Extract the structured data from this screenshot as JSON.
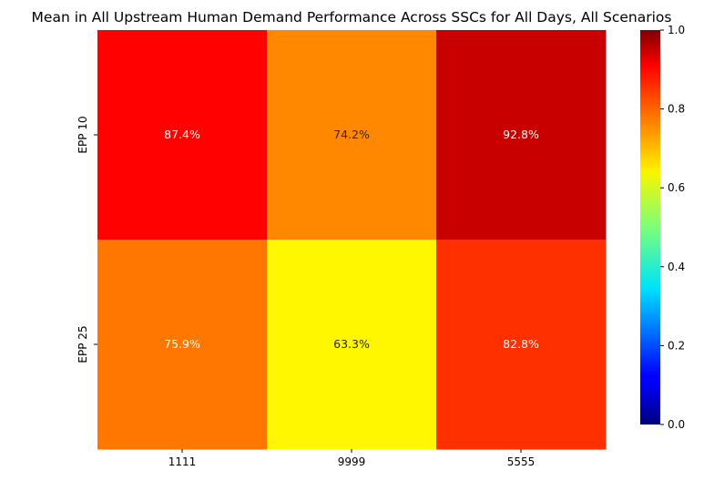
{
  "chart_data": {
    "type": "heatmap",
    "title": "Mean in All Upstream Human Demand Performance Across SSCs for All Days, All Scenarios",
    "x_categories": [
      "1111",
      "9999",
      "5555"
    ],
    "y_categories": [
      "EPP 10",
      "EPP 25"
    ],
    "values": [
      [
        0.874,
        0.742,
        0.928
      ],
      [
        0.759,
        0.633,
        0.828
      ]
    ],
    "cell_labels": [
      [
        "87.4%",
        "74.2%",
        "92.8%"
      ],
      [
        "75.9%",
        "63.3%",
        "82.8%"
      ]
    ],
    "colormap": "jet",
    "color_range": [
      0.0,
      1.0
    ],
    "colorbar_ticks": [
      "0.0",
      "0.2",
      "0.4",
      "0.6",
      "0.8",
      "1.0"
    ],
    "colorbar_tick_values": [
      0.0,
      0.2,
      0.4,
      0.6,
      0.8,
      1.0
    ],
    "grid": false
  }
}
